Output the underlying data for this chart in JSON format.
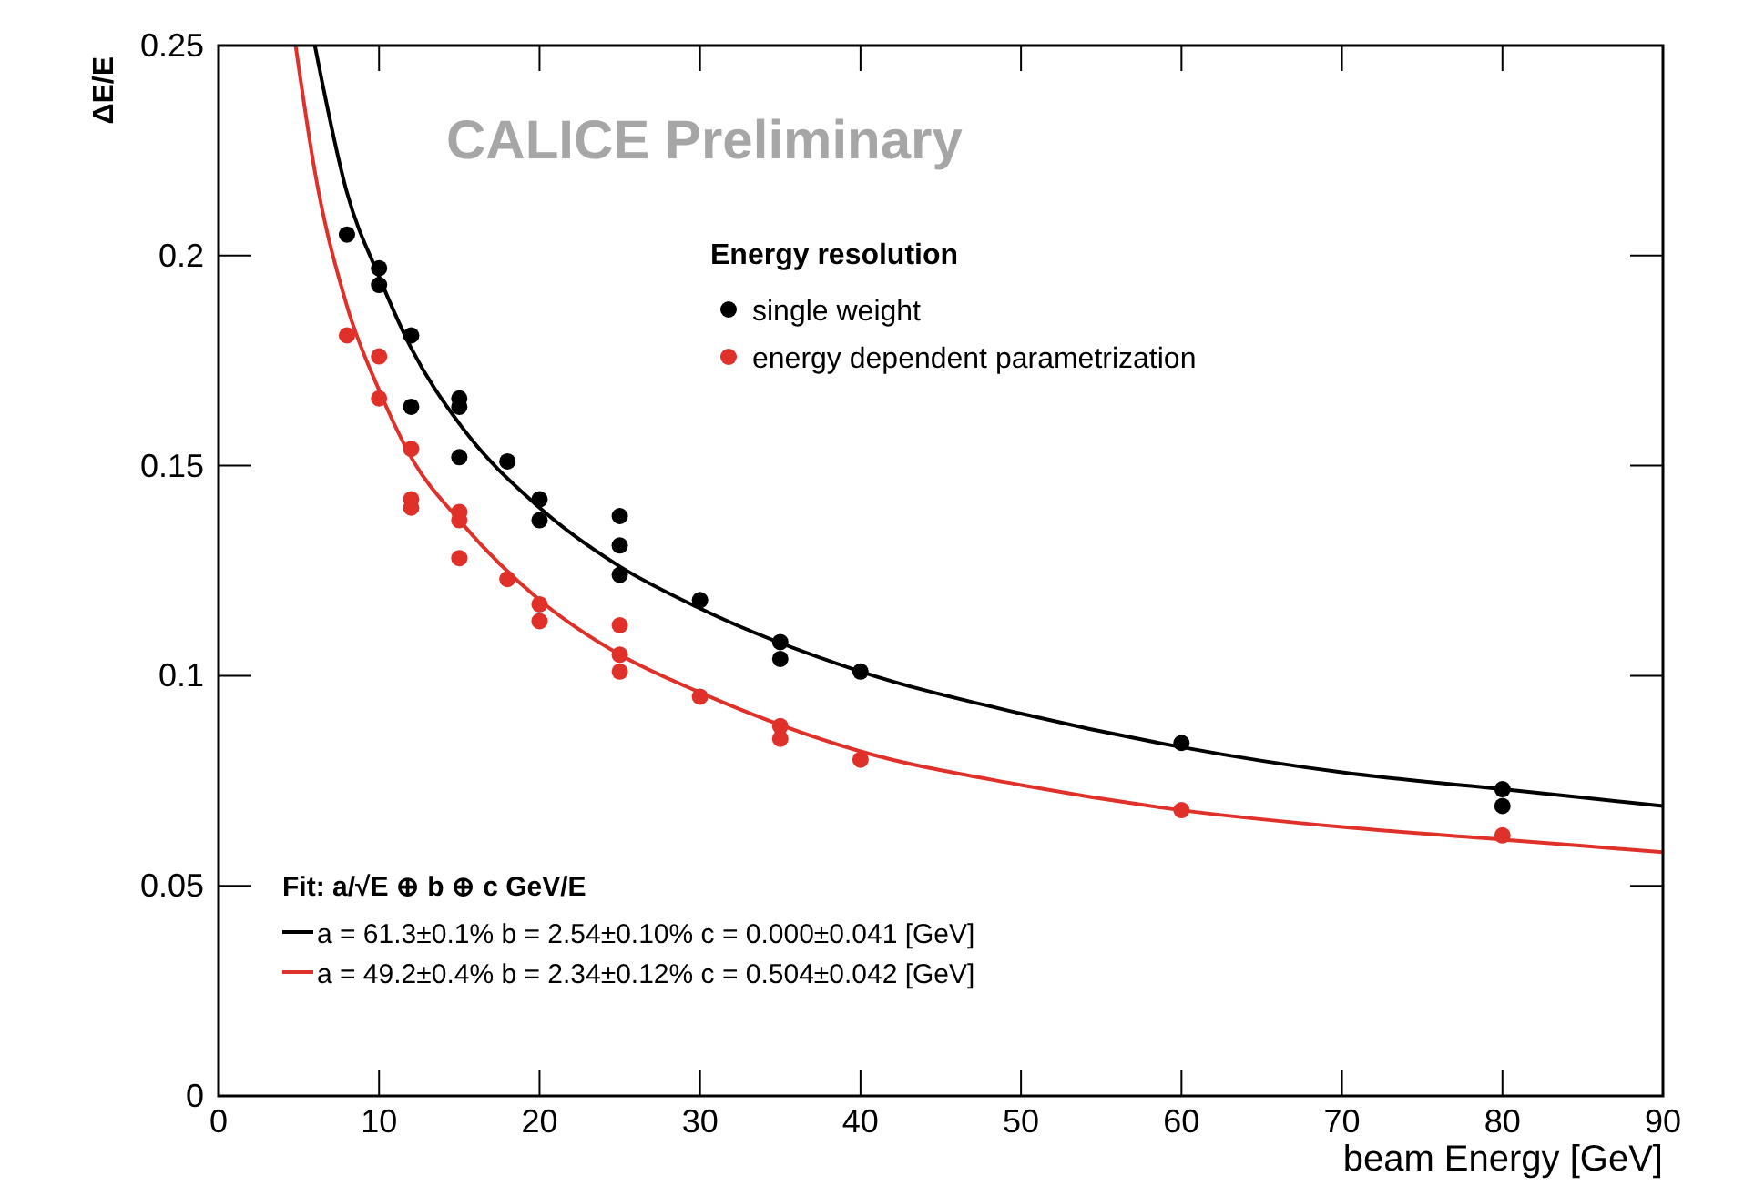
{
  "chart_data": {
    "type": "scatter",
    "xlabel": "beam Energy [GeV]",
    "ylabel": "ΔE/E",
    "legend_title": "Energy resolution",
    "legend": "left",
    "xlim": [
      0,
      90
    ],
    "ylim": [
      0,
      0.25
    ],
    "xticks": [
      0,
      10,
      20,
      30,
      40,
      50,
      60,
      70,
      80,
      90
    ],
    "yticks": [
      0,
      0.05,
      0.1,
      0.15,
      0.2,
      0.25
    ],
    "annotations": [
      "CALICE Preliminary",
      "Fit: a/√E ⊕ b ⊕ c GeV/E"
    ],
    "series": [
      {
        "name": "single weight",
        "marker": "circle",
        "color": "#000000",
        "x": [
          8,
          10,
          10,
          12,
          12,
          15,
          15,
          15,
          18,
          20,
          20,
          25,
          25,
          25,
          30,
          35,
          35,
          40,
          60,
          80,
          80
        ],
        "values": [
          0.205,
          0.197,
          0.193,
          0.181,
          0.164,
          0.166,
          0.164,
          0.152,
          0.151,
          0.142,
          0.137,
          0.138,
          0.131,
          0.124,
          0.118,
          0.108,
          0.104,
          0.101,
          0.084,
          0.073,
          0.069
        ]
      },
      {
        "name": "energy dependent parametrization",
        "marker": "circle",
        "color": "#e0302a",
        "x": [
          8,
          10,
          10,
          12,
          12,
          12,
          15,
          15,
          15,
          18,
          20,
          20,
          25,
          25,
          25,
          30,
          35,
          35,
          40,
          60,
          80
        ],
        "values": [
          0.181,
          0.176,
          0.166,
          0.154,
          0.142,
          0.14,
          0.139,
          0.137,
          0.128,
          0.123,
          0.117,
          0.113,
          0.112,
          0.105,
          0.101,
          0.095,
          0.088,
          0.085,
          0.08,
          0.068,
          0.062
        ]
      },
      {
        "type": "line",
        "marker": "none",
        "name": "a = 61.3±0.1%  b = 2.54±0.10% c = 0.000±0.041 [GeV]",
        "color": "#000000",
        "x": [
          6,
          8,
          10,
          12,
          15,
          20,
          25,
          30,
          40,
          50,
          60,
          70,
          80,
          90
        ],
        "values": [
          0.25,
          0.215,
          0.195,
          0.178,
          0.16,
          0.14,
          0.126,
          0.116,
          0.101,
          0.091,
          0.083,
          0.077,
          0.073,
          0.069
        ]
      },
      {
        "type": "line",
        "marker": "none",
        "name": "a = 49.2±0.4%  b = 2.34±0.12% c = 0.504±0.042 [GeV]",
        "color": "#e0302a",
        "x": [
          4.8,
          6,
          8,
          10,
          12,
          15,
          20,
          25,
          30,
          40,
          50,
          60,
          70,
          80,
          90
        ],
        "values": [
          0.25,
          0.22,
          0.188,
          0.168,
          0.152,
          0.137,
          0.118,
          0.105,
          0.096,
          0.082,
          0.074,
          0.068,
          0.064,
          0.061,
          0.058
        ]
      }
    ]
  }
}
